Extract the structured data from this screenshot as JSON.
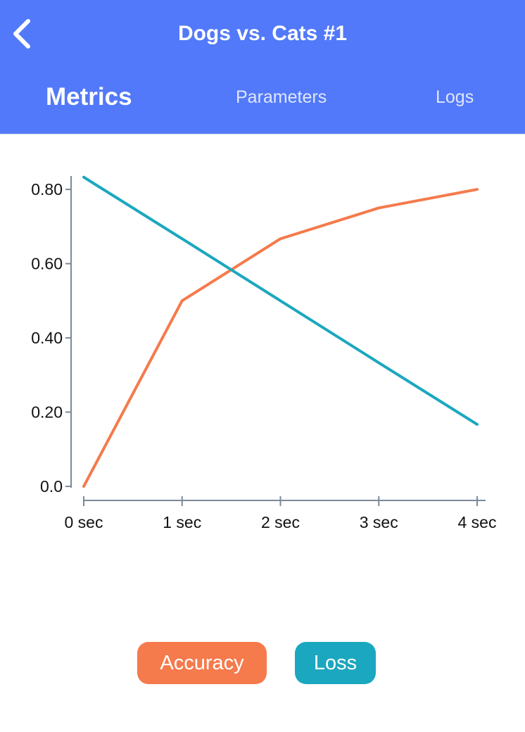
{
  "header": {
    "title": "Dogs vs. Cats #1",
    "back_icon": "chevron-left-icon",
    "background_color": "#5279f9"
  },
  "tabs": [
    {
      "label": "Metrics",
      "active": true
    },
    {
      "label": "Parameters",
      "active": false
    },
    {
      "label": "Logs",
      "active": false
    }
  ],
  "chart_data": {
    "type": "line",
    "categories": [
      "0 sec",
      "1 sec",
      "2 sec",
      "3 sec",
      "4 sec"
    ],
    "x": [
      0,
      1,
      2,
      3,
      4
    ],
    "yticks": [
      "0.0",
      "0.20",
      "0.40",
      "0.60",
      "0.80"
    ],
    "ytick_values": [
      0,
      0.2,
      0.4,
      0.6,
      0.8
    ],
    "ylim": [
      0,
      0.84
    ],
    "xlim": [
      0,
      4
    ],
    "grid": false,
    "legend_placement": "bottom",
    "series": [
      {
        "name": "Accuracy",
        "color": "#f57a4c",
        "values": [
          0.0,
          0.5,
          0.667,
          0.75,
          0.8
        ]
      },
      {
        "name": "Loss",
        "color": "#1ba7bf",
        "values": [
          0.833,
          0.667,
          0.5,
          0.333,
          0.167
        ]
      }
    ]
  }
}
